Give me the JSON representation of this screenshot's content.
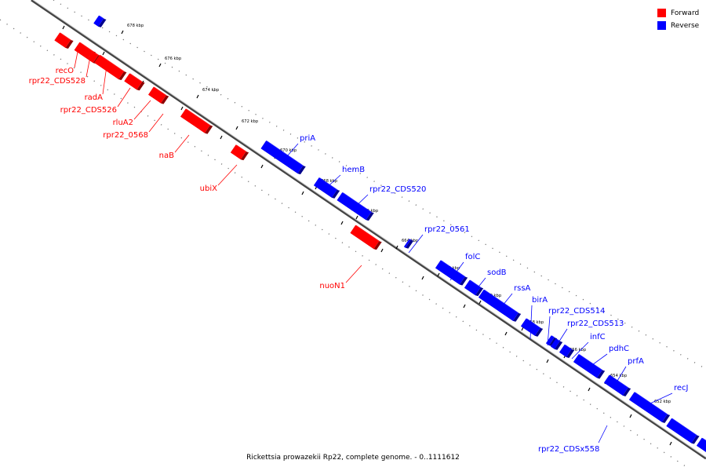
{
  "caption": "Rickettsia prowazekii Rp22, complete genome. - 0..1111612",
  "legend": [
    {
      "label": "Forward",
      "color": "#ff0000"
    },
    {
      "label": "Reverse",
      "color": "#0000ff"
    }
  ],
  "colors": {
    "forward": "#ff0000",
    "reverse": "#0000ff",
    "axis": "#000000"
  },
  "ticks": [
    "678 kbp",
    "676 kbp",
    "674 kbp",
    "672 kbp",
    "670 kbp",
    "668 kbp",
    "666 kbp",
    "664 kbp",
    "662 kbp",
    "660 kbp",
    "658 kbp",
    "656 kbp",
    "654 kbp",
    "652 kbp"
  ],
  "genes_forward": [
    "recO",
    "rpr22_CDS528",
    "radA",
    "rpr22_CDS526",
    "rluA2",
    "rpr22_0568",
    "naB",
    "ubiX",
    "nuoN1"
  ],
  "genes_reverse": [
    "priA",
    "hemB",
    "rpr22_CDS520",
    "rpr22_0561",
    "folC",
    "sodB",
    "rssA",
    "birA",
    "rpr22_CDS514",
    "rpr22_CDS513",
    "infC",
    "pdhC",
    "prfA",
    "recJ",
    "rpr22_CDSx558"
  ]
}
